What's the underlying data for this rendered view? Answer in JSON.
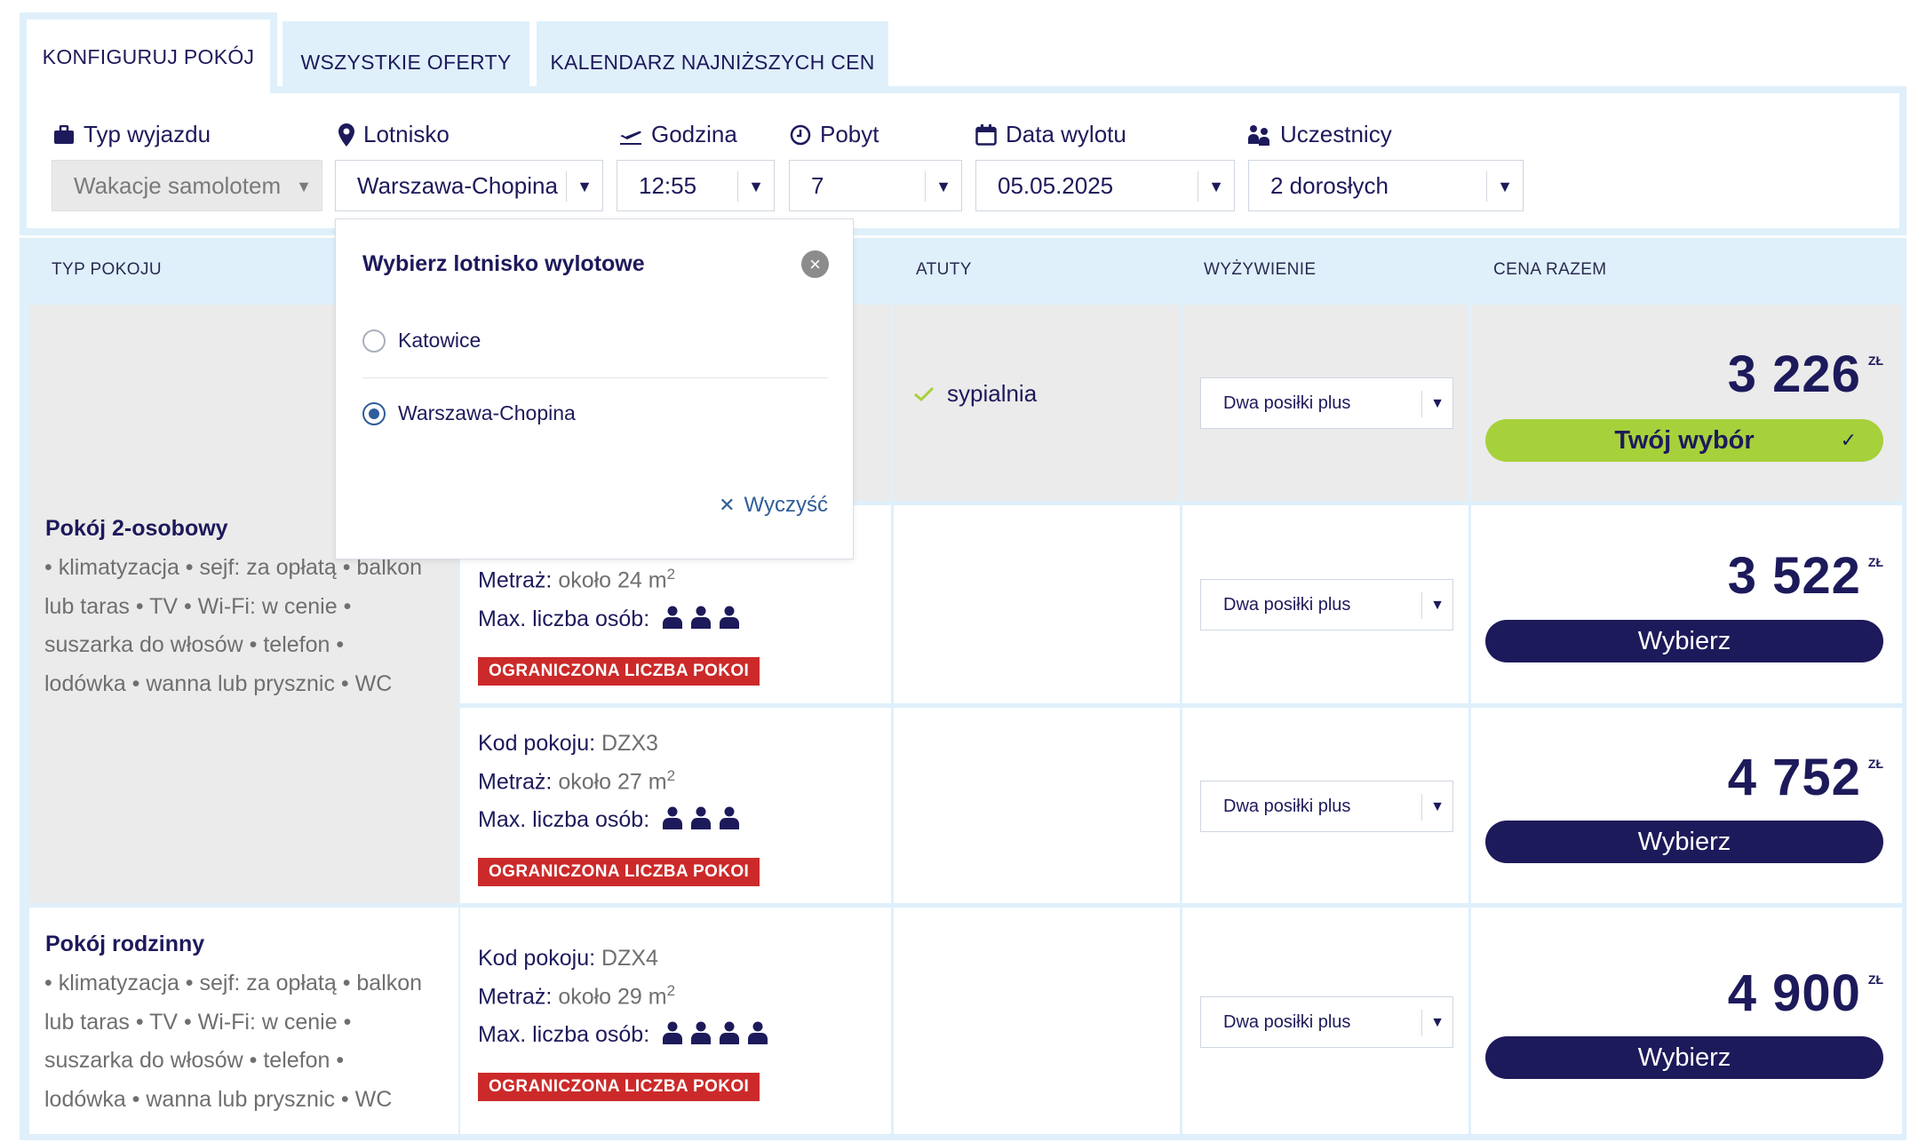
{
  "tabs": [
    {
      "label": "KONFIGURUJ POKÓJ",
      "active": true
    },
    {
      "label": "WSZYSTKIE OFERTY",
      "active": false
    },
    {
      "label": "KALENDARZ NAJNIŻSZYCH CEN",
      "active": false
    }
  ],
  "filters": {
    "trip_type": {
      "label": "Typ wyjazdu",
      "value": "Wakacje samolotem",
      "icon": "suitcase-icon",
      "disabled": true
    },
    "airport": {
      "label": "Lotnisko",
      "value": "Warszawa-Chopina",
      "icon": "location-pin-icon"
    },
    "time": {
      "label": "Godzina",
      "value": "12:55",
      "icon": "plane-departure-icon"
    },
    "stay": {
      "label": "Pobyt",
      "value": "7",
      "icon": "clock-icon"
    },
    "date": {
      "label": "Data wylotu",
      "value": "05.05.2025",
      "icon": "calendar-icon"
    },
    "participants": {
      "label": "Uczestnicy",
      "value": "2 dorosłych",
      "icon": "people-icon"
    }
  },
  "table": {
    "headers": {
      "room_type": "TYP POKOJU",
      "perks": "ATUTY",
      "board": "WYŻYWIENIE",
      "price": "CENA RAZEM"
    },
    "room_groups": [
      {
        "name": "Pokój 2-osobowy",
        "amenities_lines": [
          "• klimatyzacja • sejf: za opłatą • balkon",
          "lub taras • TV • Wi-Fi: w cenie •",
          "suszarka do włosów • telefon •",
          "lodówka • wanna lub prysznic • WC"
        ]
      },
      {
        "name": "Pokój rodzinny",
        "amenities_lines": [
          "• klimatyzacja • sejf: za opłatą • balkon",
          "lub taras • TV • Wi-Fi: w cenie •",
          "suszarka do włosów • telefon •",
          "lodówka • wanna lub prysznic • WC"
        ]
      }
    ],
    "rows": [
      {
        "perk": "sypialnia",
        "board": "Dwa posiłki plus",
        "price": "3 226",
        "currency": "ZŁ",
        "button": "Twój wybór",
        "selected": true
      },
      {
        "area_label": "Metraż:",
        "area_value": "około 24 m",
        "area_sup": "2",
        "max_label": "Max. liczba osób:",
        "max_persons": 3,
        "badge": "OGRANICZONA LICZBA POKOI",
        "board": "Dwa posiłki plus",
        "price": "3 522",
        "currency": "ZŁ",
        "button": "Wybierz"
      },
      {
        "code_label": "Kod pokoju:",
        "code_value": "DZX3",
        "area_label": "Metraż:",
        "area_value": "około 27 m",
        "area_sup": "2",
        "max_label": "Max. liczba osób:",
        "max_persons": 3,
        "badge": "OGRANICZONA LICZBA POKOI",
        "board": "Dwa posiłki plus",
        "price": "4 752",
        "currency": "ZŁ",
        "button": "Wybierz"
      },
      {
        "code_label": "Kod pokoju:",
        "code_value": "DZX4",
        "area_label": "Metraż:",
        "area_value": "około 29 m",
        "area_sup": "2",
        "max_label": "Max. liczba osób:",
        "max_persons": 4,
        "badge": "OGRANICZONA LICZBA POKOI",
        "board": "Dwa posiłki plus",
        "price": "4 900",
        "currency": "ZŁ",
        "button": "Wybierz"
      }
    ]
  },
  "airport_popup": {
    "title": "Wybierz lotnisko wylotowe",
    "options": [
      {
        "label": "Katowice",
        "selected": false
      },
      {
        "label": "Warszawa-Chopina",
        "selected": true
      }
    ],
    "clear_label": "Wyczyść"
  },
  "colors": {
    "navy": "#1d1a5b",
    "light_blue": "#dff0fb",
    "lime": "#a6d13b",
    "red_badge": "#cc2a2a",
    "grey_cell": "#ebebeb"
  }
}
